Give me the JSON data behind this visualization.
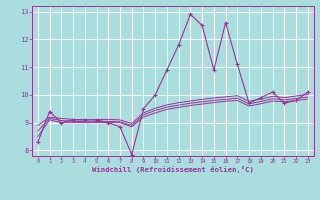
{
  "x": [
    0,
    1,
    2,
    3,
    4,
    5,
    6,
    7,
    8,
    9,
    10,
    11,
    12,
    13,
    14,
    15,
    16,
    17,
    18,
    19,
    20,
    21,
    22,
    23
  ],
  "main_line": [
    8.3,
    9.4,
    9.0,
    9.1,
    9.1,
    9.1,
    9.0,
    8.85,
    7.85,
    9.5,
    10.0,
    10.9,
    11.8,
    12.9,
    12.5,
    10.9,
    12.6,
    11.1,
    9.7,
    9.9,
    10.1,
    9.7,
    9.8,
    10.1
  ],
  "smooth1": [
    8.5,
    9.1,
    9.0,
    9.0,
    9.0,
    9.0,
    9.0,
    9.0,
    8.85,
    9.2,
    9.35,
    9.48,
    9.55,
    9.62,
    9.67,
    9.72,
    9.77,
    9.8,
    9.6,
    9.68,
    9.78,
    9.75,
    9.8,
    9.85
  ],
  "smooth2": [
    8.7,
    9.15,
    9.08,
    9.05,
    9.03,
    9.04,
    9.05,
    9.03,
    8.9,
    9.28,
    9.44,
    9.56,
    9.63,
    9.7,
    9.75,
    9.8,
    9.84,
    9.88,
    9.68,
    9.76,
    9.86,
    9.82,
    9.87,
    9.92
  ],
  "smooth3": [
    8.9,
    9.2,
    9.15,
    9.12,
    9.1,
    9.11,
    9.12,
    9.1,
    8.97,
    9.35,
    9.52,
    9.64,
    9.72,
    9.78,
    9.84,
    9.89,
    9.93,
    9.97,
    9.77,
    9.85,
    9.95,
    9.9,
    9.96,
    10.01
  ],
  "line_color": "#993399",
  "bg_color": "#aadddd",
  "grid_color": "#cceeee",
  "xlabel": "Windchill (Refroidissement éolien,°C)",
  "ylim": [
    7.8,
    13.2
  ],
  "xlim": [
    -0.5,
    23.5
  ],
  "yticks": [
    8,
    9,
    10,
    11,
    12,
    13
  ],
  "xticks": [
    0,
    1,
    2,
    3,
    4,
    5,
    6,
    7,
    8,
    9,
    10,
    11,
    12,
    13,
    14,
    15,
    16,
    17,
    18,
    19,
    20,
    21,
    22,
    23
  ]
}
